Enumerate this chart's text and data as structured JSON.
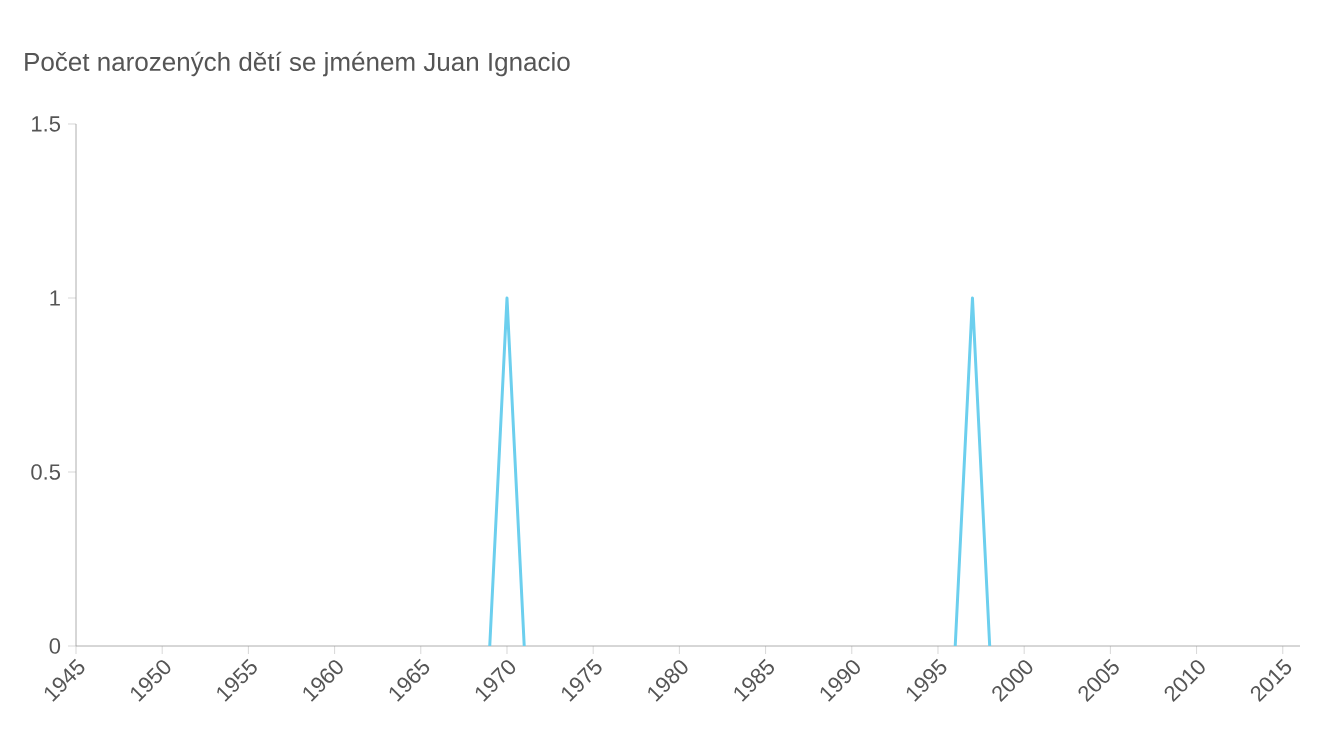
{
  "chart_data": {
    "type": "line",
    "title": "Počet narozených dětí se jménem Juan Ignacio",
    "series": [
      {
        "color": "#6ccfee",
        "x": [
          1969,
          1970,
          1971
        ],
        "values": [
          0,
          1,
          0
        ]
      },
      {
        "color": "#6ccfee",
        "x": [
          1996,
          1997,
          1998
        ],
        "values": [
          0,
          1,
          0
        ]
      }
    ],
    "xlim": [
      1945,
      2016
    ],
    "ylim": [
      0,
      1.5
    ],
    "xticks": [
      1945,
      1950,
      1955,
      1960,
      1965,
      1970,
      1975,
      1980,
      1985,
      1990,
      1995,
      2000,
      2005,
      2010,
      2015
    ],
    "yticks": [
      0,
      0.5,
      1,
      1.5
    ],
    "marker": "none",
    "line_style": "solid"
  }
}
